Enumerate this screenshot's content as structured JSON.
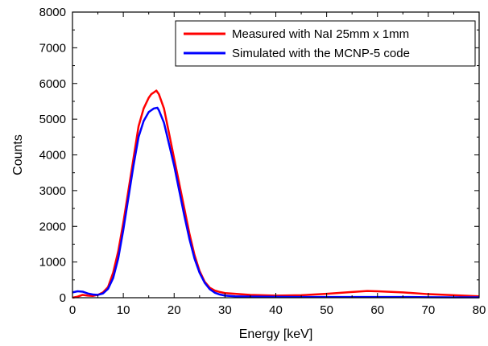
{
  "chart_data": {
    "type": "line",
    "title": "",
    "xlabel": "Energy [keV]",
    "ylabel": "Counts",
    "xlim": [
      0,
      80
    ],
    "ylim": [
      0,
      8000
    ],
    "x_ticks": [
      0,
      10,
      20,
      30,
      40,
      50,
      60,
      70,
      80
    ],
    "y_ticks": [
      0,
      1000,
      2000,
      3000,
      4000,
      5000,
      6000,
      7000,
      8000
    ],
    "x_tick_labels": [
      "0",
      "10",
      "20",
      "30",
      "40",
      "50",
      "60",
      "70",
      "80"
    ],
    "y_tick_labels": [
      "0",
      "1000",
      "2000",
      "3000",
      "4000",
      "5000",
      "6000",
      "7000",
      "8000"
    ],
    "grid": false,
    "legend_position": "top-right",
    "series": [
      {
        "name": "Measured with NaI 25mm x 1mm",
        "color": "#ff0000",
        "x": [
          0,
          1,
          2,
          3,
          4,
          5,
          6,
          7,
          8,
          9,
          10,
          11,
          12,
          13,
          14,
          15,
          15.5,
          16,
          16.5,
          17,
          17.5,
          18,
          19,
          20,
          21,
          22,
          23,
          24,
          25,
          26,
          27,
          28,
          29,
          30,
          32,
          35,
          40,
          45,
          50,
          55,
          58,
          60,
          65,
          70,
          75,
          80
        ],
        "y": [
          0,
          30,
          80,
          60,
          50,
          80,
          150,
          300,
          700,
          1300,
          2100,
          3000,
          3900,
          4800,
          5300,
          5600,
          5700,
          5750,
          5800,
          5700,
          5500,
          5300,
          4600,
          3900,
          3200,
          2500,
          1800,
          1200,
          750,
          450,
          280,
          200,
          160,
          130,
          110,
          80,
          60,
          70,
          110,
          160,
          190,
          180,
          150,
          100,
          70,
          40
        ]
      },
      {
        "name": "Simulated with the MCNP-5 code",
        "color": "#0000ff",
        "x": [
          0,
          1,
          2,
          3,
          4,
          5,
          6,
          7,
          8,
          9,
          10,
          11,
          12,
          13,
          14,
          15,
          16,
          16.7,
          17,
          18,
          19,
          20,
          21,
          22,
          23,
          24,
          25,
          26,
          27,
          28,
          29,
          30,
          32,
          35,
          40,
          45,
          50,
          55,
          60,
          65,
          70,
          75,
          80
        ],
        "y": [
          150,
          180,
          170,
          120,
          90,
          80,
          120,
          250,
          550,
          1100,
          1900,
          2800,
          3700,
          4500,
          4950,
          5200,
          5300,
          5320,
          5250,
          4900,
          4300,
          3700,
          3000,
          2300,
          1650,
          1100,
          700,
          420,
          240,
          140,
          90,
          60,
          40,
          30,
          25,
          20,
          20,
          20,
          20,
          20,
          15,
          10,
          10
        ]
      }
    ]
  }
}
